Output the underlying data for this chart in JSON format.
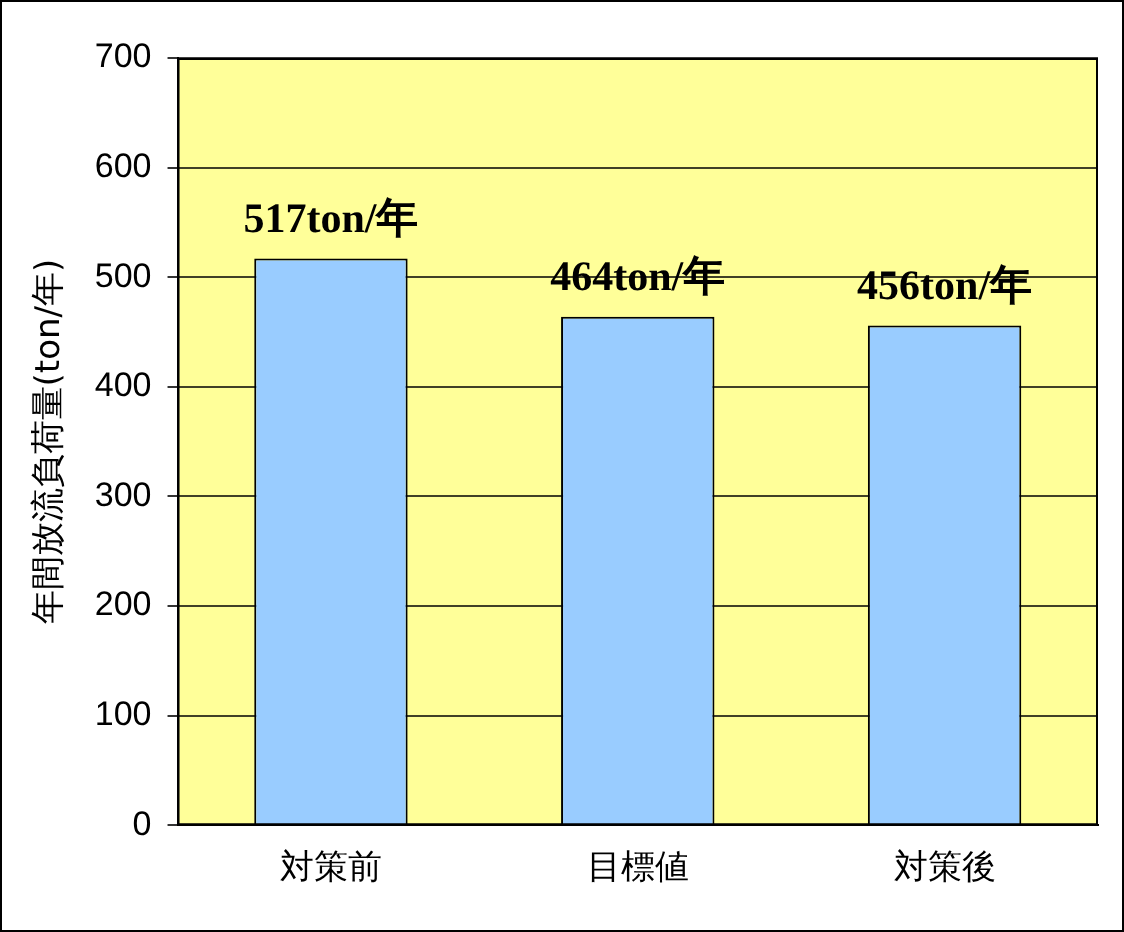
{
  "chart_data": {
    "type": "bar",
    "ylabel": "年間放流負荷量(ton/年)",
    "categories": [
      "対策前",
      "目標値",
      "対策後"
    ],
    "values": [
      517,
      464,
      456
    ],
    "color": "#99ccff",
    "value_labels": [
      "517ton/年",
      "464ton/年",
      "456ton/年"
    ],
    "ylim": [
      0,
      700
    ],
    "yticks": [
      0,
      100,
      200,
      300,
      400,
      500,
      600,
      700
    ],
    "grid": "y",
    "legend": false
  }
}
